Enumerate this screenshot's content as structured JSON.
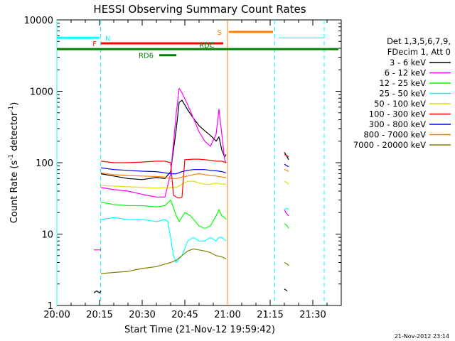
{
  "chart_data": {
    "type": "line",
    "title": "HESSI Observing Summary Count Rates",
    "xlabel": "Start Time (21-Nov-12 19:59:42)",
    "ylabel_main": "Count Rate (s",
    "ylabel_sup1": "-1",
    "ylabel_mid": " detector",
    "ylabel_sup2": "-1",
    "ylabel_end": ")",
    "x_range_minutes": [
      0,
      100
    ],
    "y_scale": "log",
    "ylim": [
      1,
      10000
    ],
    "x_tick_labels": [
      {
        "min": 0,
        "label": "20:00"
      },
      {
        "min": 15,
        "label": "20:15"
      },
      {
        "min": 30,
        "label": "20:30"
      },
      {
        "min": 45,
        "label": "20:45"
      },
      {
        "min": 60,
        "label": "21:00"
      },
      {
        "min": 75,
        "label": "21:15"
      },
      {
        "min": 90,
        "label": "21:30"
      }
    ],
    "y_tick_labels": [
      {
        "value": 1,
        "label": "1"
      },
      {
        "value": 10,
        "label": "10"
      },
      {
        "value": 100,
        "label": "100"
      },
      {
        "value": 1000,
        "label": "1000"
      },
      {
        "value": 10000,
        "label": "10000"
      }
    ],
    "legend": {
      "position": "right",
      "header1": "Det 1,3,5,6,7,9,",
      "header2": "FDecim 1, Att 0",
      "entries": [
        {
          "label": "3 - 6 keV",
          "color": "#000000"
        },
        {
          "label": "6 - 12 keV",
          "color": "#ff00ff"
        },
        {
          "label": "12 - 25 keV",
          "color": "#00ff00"
        },
        {
          "label": "25 - 50 keV",
          "color": "#00ffff"
        },
        {
          "label": "50 - 100 keV",
          "color": "#e0e000"
        },
        {
          "label": "100 - 300 keV",
          "color": "#ff0000"
        },
        {
          "label": "300 - 800 keV",
          "color": "#0000ff"
        },
        {
          "label": "800 - 7000 keV",
          "color": "#ff8000"
        },
        {
          "label": "7000 - 20000 keV",
          "color": "#808000"
        }
      ]
    },
    "series": [
      {
        "name": "3 - 6 keV",
        "color": "#000000",
        "segments": [
          [
            [
              13,
              1.5
            ],
            [
              14,
              1.6
            ],
            [
              15,
              1.5
            ],
            [
              15.5,
              1.6
            ]
          ],
          [
            [
              15.5,
              70
            ],
            [
              20,
              65
            ],
            [
              25,
              60
            ],
            [
              30,
              58
            ],
            [
              35,
              62
            ],
            [
              38,
              60
            ],
            [
              40,
              75
            ],
            [
              42,
              300
            ],
            [
              43,
              700
            ],
            [
              44,
              750
            ],
            [
              46,
              550
            ],
            [
              48,
              420
            ],
            [
              50,
              330
            ],
            [
              52,
              280
            ],
            [
              54,
              240
            ],
            [
              55,
              220
            ],
            [
              56,
              200
            ],
            [
              57,
              230
            ],
            [
              58,
              150
            ],
            [
              59,
              120
            ],
            [
              59.5,
              130
            ]
          ],
          [
            [
              80,
              1.7
            ],
            [
              81,
              1.6
            ]
          ],
          [
            [
              80,
              140
            ],
            [
              80.5,
              130
            ],
            [
              81,
              120
            ],
            [
              81.5,
              110
            ]
          ]
        ]
      },
      {
        "name": "6 - 12 keV",
        "color": "#ff00ff",
        "segments": [
          [
            [
              13,
              6
            ],
            [
              15,
              6
            ],
            [
              15.5,
              6
            ]
          ],
          [
            [
              15.5,
              45
            ],
            [
              20,
              42
            ],
            [
              25,
              40
            ],
            [
              30,
              36
            ],
            [
              35,
              33
            ],
            [
              38,
              33
            ],
            [
              40,
              70
            ],
            [
              42,
              500
            ],
            [
              43,
              1100
            ],
            [
              44,
              950
            ],
            [
              46,
              650
            ],
            [
              48,
              420
            ],
            [
              50,
              270
            ],
            [
              52,
              200
            ],
            [
              54,
              170
            ],
            [
              56,
              250
            ],
            [
              57,
              560
            ],
            [
              58,
              250
            ],
            [
              59,
              110
            ],
            [
              59.5,
              100
            ]
          ],
          [
            [
              80,
              22
            ],
            [
              80.5,
              20
            ],
            [
              81,
              19
            ],
            [
              81.5,
              18
            ]
          ]
        ]
      },
      {
        "name": "12 - 25 keV",
        "color": "#00ff00",
        "segments": [
          [
            [
              15.5,
              28
            ],
            [
              20,
              26
            ],
            [
              25,
              25
            ],
            [
              30,
              25
            ],
            [
              35,
              24
            ],
            [
              38,
              25
            ],
            [
              40,
              30
            ],
            [
              42,
              18
            ],
            [
              43,
              15
            ],
            [
              45,
              20
            ],
            [
              47,
              18
            ],
            [
              50,
              13
            ],
            [
              52,
              12
            ],
            [
              54,
              13
            ],
            [
              56,
              18
            ],
            [
              57,
              22
            ],
            [
              58,
              18
            ],
            [
              59,
              17
            ],
            [
              59.5,
              16
            ]
          ],
          [
            [
              80,
              14
            ],
            [
              81,
              13
            ],
            [
              81.5,
              12
            ]
          ]
        ]
      },
      {
        "name": "25 - 50 keV",
        "color": "#00ffff",
        "segments": [
          [
            [
              0,
              5600
            ],
            [
              15,
              5600
            ]
          ],
          [
            [
              15.5,
              16
            ],
            [
              20,
              17
            ],
            [
              25,
              16
            ],
            [
              30,
              16
            ],
            [
              35,
              15
            ],
            [
              38,
              16
            ],
            [
              39,
              15
            ],
            [
              40,
              9
            ],
            [
              41,
              5
            ],
            [
              42,
              4
            ],
            [
              43,
              4.5
            ],
            [
              44,
              5
            ],
            [
              46,
              8
            ],
            [
              48,
              9
            ],
            [
              50,
              8
            ],
            [
              52,
              8
            ],
            [
              54,
              9
            ],
            [
              56,
              8
            ],
            [
              57,
              9
            ],
            [
              58,
              9
            ],
            [
              59.5,
              8
            ]
          ],
          [
            [
              80,
              22
            ],
            [
              81,
              23
            ],
            [
              81.5,
              22
            ]
          ],
          [
            [
              78,
              5600
            ],
            [
              94,
              5600
            ]
          ]
        ]
      },
      {
        "name": "50 - 100 keV",
        "color": "#e0e000",
        "segments": [
          [
            [
              15.5,
              48
            ],
            [
              20,
              47
            ],
            [
              25,
              46
            ],
            [
              30,
              45
            ],
            [
              35,
              44
            ],
            [
              38,
              45
            ],
            [
              40,
              45
            ],
            [
              42,
              45
            ],
            [
              44,
              50
            ],
            [
              46,
              55
            ],
            [
              48,
              55
            ],
            [
              50,
              52
            ],
            [
              52,
              50
            ],
            [
              54,
              50
            ],
            [
              56,
              52
            ],
            [
              58,
              50
            ],
            [
              59.5,
              50
            ]
          ],
          [
            [
              80,
              55
            ],
            [
              81,
              52
            ],
            [
              81.5,
              50
            ]
          ]
        ]
      },
      {
        "name": "100 - 300 keV",
        "color": "#ff0000",
        "segments": [
          [
            [
              15.5,
              105
            ],
            [
              20,
              100
            ],
            [
              25,
              100
            ],
            [
              30,
              102
            ],
            [
              35,
              105
            ],
            [
              38,
              105
            ],
            [
              40,
              100
            ],
            [
              41,
              35
            ],
            [
              42,
              33
            ],
            [
              43,
              32
            ],
            [
              44,
              33
            ],
            [
              45,
              110
            ],
            [
              48,
              112
            ],
            [
              50,
              112
            ],
            [
              52,
              110
            ],
            [
              54,
              108
            ],
            [
              56,
              105
            ],
            [
              58,
              105
            ],
            [
              59.5,
              100
            ]
          ],
          [
            [
              80,
              130
            ],
            [
              81,
              125
            ],
            [
              81.5,
              120
            ]
          ]
        ]
      },
      {
        "name": "300 - 800 keV",
        "color": "#0000ff",
        "segments": [
          [
            [
              15.5,
              85
            ],
            [
              20,
              80
            ],
            [
              25,
              78
            ],
            [
              30,
              76
            ],
            [
              35,
              75
            ],
            [
              38,
              72
            ],
            [
              40,
              70
            ],
            [
              42,
              70
            ],
            [
              44,
              75
            ],
            [
              46,
              78
            ],
            [
              48,
              80
            ],
            [
              50,
              80
            ],
            [
              52,
              80
            ],
            [
              54,
              78
            ],
            [
              56,
              77
            ],
            [
              58,
              75
            ],
            [
              59.5,
              72
            ]
          ],
          [
            [
              80,
              95
            ],
            [
              81,
              90
            ],
            [
              81.5,
              88
            ]
          ]
        ]
      },
      {
        "name": "800 - 7000 keV",
        "color": "#ff8000",
        "segments": [
          [
            [
              15.5,
              72
            ],
            [
              20,
              68
            ],
            [
              25,
              66
            ],
            [
              30,
              65
            ],
            [
              35,
              64
            ],
            [
              38,
              63
            ],
            [
              40,
              60
            ],
            [
              42,
              60
            ],
            [
              44,
              63
            ],
            [
              46,
              65
            ],
            [
              48,
              68
            ],
            [
              50,
              70
            ],
            [
              52,
              68
            ],
            [
              54,
              66
            ],
            [
              56,
              65
            ],
            [
              58,
              63
            ],
            [
              59.5,
              62
            ]
          ],
          [
            [
              80,
              80
            ],
            [
              81,
              78
            ],
            [
              81.5,
              75
            ]
          ]
        ]
      },
      {
        "name": "7000 - 20000 keV",
        "color": "#808000",
        "segments": [
          [
            [
              15.5,
              2.8
            ],
            [
              20,
              2.9
            ],
            [
              25,
              3.0
            ],
            [
              30,
              3.3
            ],
            [
              35,
              3.5
            ],
            [
              38,
              3.8
            ],
            [
              40,
              4.0
            ],
            [
              42,
              4.3
            ],
            [
              44,
              5.0
            ],
            [
              46,
              5.8
            ],
            [
              48,
              6.2
            ],
            [
              50,
              6.0
            ],
            [
              52,
              5.8
            ],
            [
              54,
              5.5
            ],
            [
              56,
              5.0
            ],
            [
              58,
              4.8
            ],
            [
              59.5,
              4.5
            ]
          ],
          [
            [
              80,
              4.0
            ],
            [
              81,
              3.8
            ],
            [
              81.5,
              3.6
            ]
          ]
        ]
      }
    ],
    "flag_bars": [
      {
        "label": "N",
        "color": "#00ffff",
        "x0": 0,
        "x1": 15,
        "y": 5600,
        "label_at": 17,
        "label_side": "right"
      },
      {
        "label": "F",
        "color": "#ff0000",
        "x0": 15.5,
        "x1": 58.5,
        "y": 4700,
        "label_at": 14,
        "label_side": "left"
      },
      {
        "label": "S",
        "color": "#ff8000",
        "x0": 60.5,
        "x1": 76,
        "y": 6800,
        "label_at": 58,
        "label_side": "left"
      },
      {
        "label": "RDC",
        "color": "#008000",
        "x0": 0,
        "x1": 99,
        "y": 3900,
        "label_at": 50,
        "label_side": "above"
      },
      {
        "label": "RD6",
        "color": "#008000",
        "x0": 36,
        "x1": 42,
        "y": 3200,
        "label_at": 34,
        "label_side": "left"
      }
    ],
    "vlines": [
      {
        "x": 15.4,
        "color": "#00ffff",
        "style": "dash"
      },
      {
        "x": 60,
        "color": "#ff8000",
        "style": "solid"
      },
      {
        "x": 76.6,
        "color": "#00ffff",
        "style": "dash"
      },
      {
        "x": 94,
        "color": "#00ffff",
        "style": "dash"
      },
      {
        "x": 0,
        "color": "#00ffff",
        "style": "solid"
      }
    ]
  },
  "footer": {
    "timestamp": "21-Nov-2012 23:14"
  }
}
